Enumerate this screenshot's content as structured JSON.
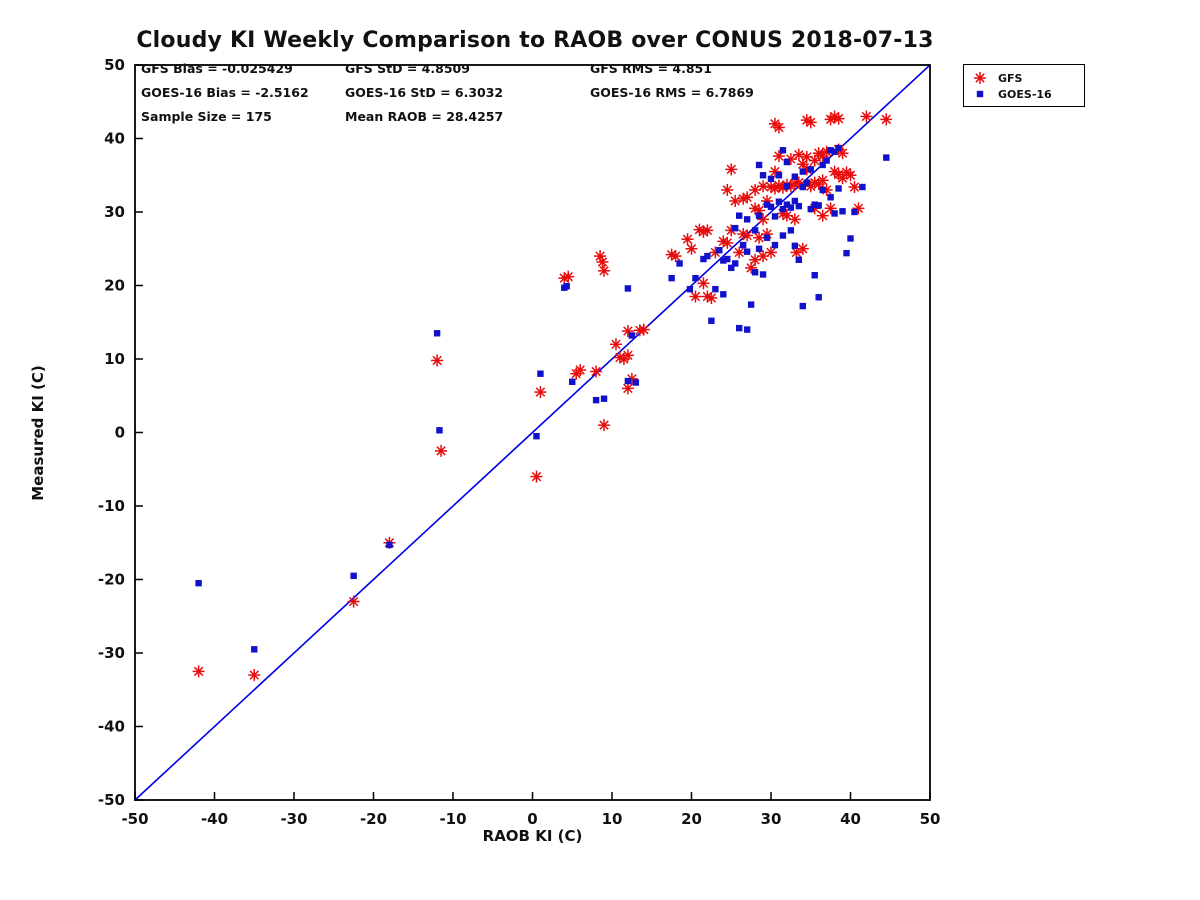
{
  "chart_data": {
    "type": "scatter",
    "title": "Cloudy KI Weekly Comparison to RAOB over CONUS 2018-07-13",
    "xlabel": "RAOB KI (C)",
    "ylabel": "Measured KI (C)",
    "xlim": [
      -50,
      50
    ],
    "ylim": [
      -50,
      50
    ],
    "xticks": [
      -50,
      -40,
      -30,
      -20,
      -10,
      0,
      10,
      20,
      30,
      40,
      50
    ],
    "yticks": [
      -50,
      -40,
      -30,
      -20,
      -10,
      0,
      10,
      20,
      30,
      40,
      50
    ],
    "grid": false,
    "stats": {
      "rows": [
        [
          "GFS Bias = -0.025429",
          "GFS StD = 4.8509",
          "GFS RMS = 4.851"
        ],
        [
          "GOES-16 Bias = -2.5162",
          "GOES-16 StD = 6.3032",
          "GOES-16 RMS = 6.7869"
        ],
        [
          "Sample Size = 175",
          "Mean RAOB = 28.4257",
          ""
        ]
      ]
    },
    "legend": {
      "position": "top-right",
      "entries": [
        {
          "label": "GFS",
          "marker": "asterisk",
          "color": "#e80b0b"
        },
        {
          "label": "GOES-16",
          "marker": "square",
          "color": "#1111cc"
        }
      ]
    },
    "reference_line": {
      "from": [
        -50,
        -50
      ],
      "to": [
        50,
        50
      ],
      "color": "#0000e6"
    },
    "series": [
      {
        "name": "GFS",
        "marker": "asterisk",
        "color": "#e80b0b",
        "points": [
          [
            -42,
            -32.5
          ],
          [
            -35,
            -33
          ],
          [
            -22.5,
            -23
          ],
          [
            -18,
            -15
          ],
          [
            -12,
            9.8
          ],
          [
            -11.5,
            -2.5
          ],
          [
            0.5,
            -6
          ],
          [
            1,
            5.5
          ],
          [
            4,
            21
          ],
          [
            4.5,
            21.2
          ],
          [
            5.5,
            8
          ],
          [
            6,
            8.5
          ],
          [
            8,
            8.3
          ],
          [
            8.5,
            24
          ],
          [
            8.8,
            23.2
          ],
          [
            9,
            22
          ],
          [
            9,
            1
          ],
          [
            10.5,
            12
          ],
          [
            11,
            10.2
          ],
          [
            11.5,
            10
          ],
          [
            12,
            13.8
          ],
          [
            12,
            10.5
          ],
          [
            12,
            6
          ],
          [
            12.5,
            7.3
          ],
          [
            13.5,
            13.9
          ],
          [
            14,
            14
          ],
          [
            17.5,
            24.2
          ],
          [
            18,
            24
          ],
          [
            19.5,
            26.3
          ],
          [
            20,
            25
          ],
          [
            20.5,
            18.5
          ],
          [
            21,
            27.6
          ],
          [
            21.5,
            27.3
          ],
          [
            21.5,
            20.3
          ],
          [
            22,
            27.5
          ],
          [
            22,
            18.5
          ],
          [
            22.5,
            18.3
          ],
          [
            23,
            24.5
          ],
          [
            24,
            26
          ],
          [
            24.5,
            25.8
          ],
          [
            24.5,
            33
          ],
          [
            25,
            35.8
          ],
          [
            25,
            27.5
          ],
          [
            25.5,
            31.5
          ],
          [
            26,
            24.5
          ],
          [
            26.5,
            27
          ],
          [
            26.5,
            31.8
          ],
          [
            27,
            26.8
          ],
          [
            27,
            32
          ],
          [
            27.5,
            22.4
          ],
          [
            28,
            23.5
          ],
          [
            28,
            30.5
          ],
          [
            28,
            33
          ],
          [
            28.5,
            30.2
          ],
          [
            28.5,
            26.5
          ],
          [
            29,
            29
          ],
          [
            29,
            24
          ],
          [
            29,
            33.5
          ],
          [
            29.5,
            27
          ],
          [
            29.5,
            31.5
          ],
          [
            30,
            24.5
          ],
          [
            30,
            33.4
          ],
          [
            30.5,
            33.2
          ],
          [
            30.5,
            42
          ],
          [
            30.5,
            35.5
          ],
          [
            31,
            33.6
          ],
          [
            31,
            41.5
          ],
          [
            31,
            37.6
          ],
          [
            31.5,
            33.3
          ],
          [
            31.5,
            29.8
          ],
          [
            32,
            33.7
          ],
          [
            32,
            29.5
          ],
          [
            32.5,
            33.5
          ],
          [
            32.5,
            37.2
          ],
          [
            33,
            33.9
          ],
          [
            33,
            29
          ],
          [
            33.2,
            24.5
          ],
          [
            33.5,
            34
          ],
          [
            33.5,
            37.8
          ],
          [
            34,
            25
          ],
          [
            34,
            36.5
          ],
          [
            34.5,
            35.8
          ],
          [
            34.5,
            42.5
          ],
          [
            34.5,
            37.5
          ],
          [
            35,
            42.2
          ],
          [
            35,
            33.5
          ],
          [
            35.5,
            34
          ],
          [
            35.5,
            30.5
          ],
          [
            35.5,
            37
          ],
          [
            36,
            33.8
          ],
          [
            36,
            38
          ],
          [
            36.5,
            37.6
          ],
          [
            36.5,
            34.3
          ],
          [
            36.5,
            29.5
          ],
          [
            37,
            38.2
          ],
          [
            37,
            33
          ],
          [
            37.5,
            42.6
          ],
          [
            37.5,
            30.5
          ],
          [
            38,
            43
          ],
          [
            38,
            35.5
          ],
          [
            38.5,
            42.7
          ],
          [
            38.5,
            35.1
          ],
          [
            38.5,
            38.5
          ],
          [
            39,
            34.6
          ],
          [
            39,
            38
          ],
          [
            39.5,
            35.4
          ],
          [
            40,
            35
          ],
          [
            40.5,
            33.4
          ],
          [
            41,
            30.5
          ],
          [
            42,
            43
          ],
          [
            44.5,
            42.6
          ]
        ]
      },
      {
        "name": "GOES-16",
        "marker": "square",
        "color": "#1111cc",
        "points": [
          [
            -42,
            -20.5
          ],
          [
            -35,
            -29.5
          ],
          [
            -22.5,
            -19.5
          ],
          [
            -18,
            -15.3
          ],
          [
            -12,
            13.5
          ],
          [
            -11.7,
            0.3
          ],
          [
            0.5,
            -0.5
          ],
          [
            1,
            8
          ],
          [
            4,
            19.7
          ],
          [
            4.3,
            19.9
          ],
          [
            5,
            6.9
          ],
          [
            8,
            4.4
          ],
          [
            9,
            4.6
          ],
          [
            12,
            19.6
          ],
          [
            12.5,
            13.2
          ],
          [
            12,
            7
          ],
          [
            13,
            6.8
          ],
          [
            17.5,
            21
          ],
          [
            18.5,
            23
          ],
          [
            19.8,
            19.5
          ],
          [
            20.5,
            21
          ],
          [
            21.5,
            23.6
          ],
          [
            22,
            24
          ],
          [
            22.5,
            15.2
          ],
          [
            23,
            19.5
          ],
          [
            23.5,
            24.8
          ],
          [
            24,
            23.4
          ],
          [
            24,
            18.8
          ],
          [
            24.5,
            23.6
          ],
          [
            25,
            22.4
          ],
          [
            25.5,
            23
          ],
          [
            25.5,
            27.8
          ],
          [
            26,
            14.2
          ],
          [
            26,
            29.5
          ],
          [
            26.5,
            25.5
          ],
          [
            27,
            14
          ],
          [
            27,
            24.6
          ],
          [
            27,
            29
          ],
          [
            27.5,
            17.4
          ],
          [
            28,
            27.5
          ],
          [
            28,
            21.8
          ],
          [
            28.5,
            25
          ],
          [
            28.5,
            36.4
          ],
          [
            28.5,
            29.5
          ],
          [
            29,
            35
          ],
          [
            29,
            21.5
          ],
          [
            29.5,
            31
          ],
          [
            29.5,
            26.5
          ],
          [
            30,
            30.7
          ],
          [
            30,
            34.5
          ],
          [
            30.5,
            29.4
          ],
          [
            30.5,
            25.5
          ],
          [
            31,
            31.4
          ],
          [
            31,
            35
          ],
          [
            31.5,
            30.4
          ],
          [
            31.5,
            38.4
          ],
          [
            31.5,
            26.8
          ],
          [
            32,
            31
          ],
          [
            32,
            36.8
          ],
          [
            32,
            33.5
          ],
          [
            32.5,
            30.6
          ],
          [
            32.5,
            27.5
          ],
          [
            33,
            25.4
          ],
          [
            33,
            31.5
          ],
          [
            33,
            34.8
          ],
          [
            33.5,
            23.5
          ],
          [
            33.5,
            30.8
          ],
          [
            34,
            17.2
          ],
          [
            34,
            33.4
          ],
          [
            34,
            35.5
          ],
          [
            34.5,
            34
          ],
          [
            35,
            30.4
          ],
          [
            35,
            35.8
          ],
          [
            35.5,
            31
          ],
          [
            35.5,
            21.4
          ],
          [
            36,
            30.9
          ],
          [
            36,
            18.4
          ],
          [
            36.5,
            36.4
          ],
          [
            36.5,
            33
          ],
          [
            37,
            37
          ],
          [
            37.5,
            38.4
          ],
          [
            37.5,
            32
          ],
          [
            38,
            38.2
          ],
          [
            38,
            29.8
          ],
          [
            38.5,
            38.7
          ],
          [
            38.5,
            33.2
          ],
          [
            39,
            30.1
          ],
          [
            39.5,
            24.4
          ],
          [
            40,
            26.4
          ],
          [
            40.5,
            30
          ],
          [
            41.5,
            33.4
          ],
          [
            44.5,
            37.4
          ]
        ]
      }
    ]
  }
}
